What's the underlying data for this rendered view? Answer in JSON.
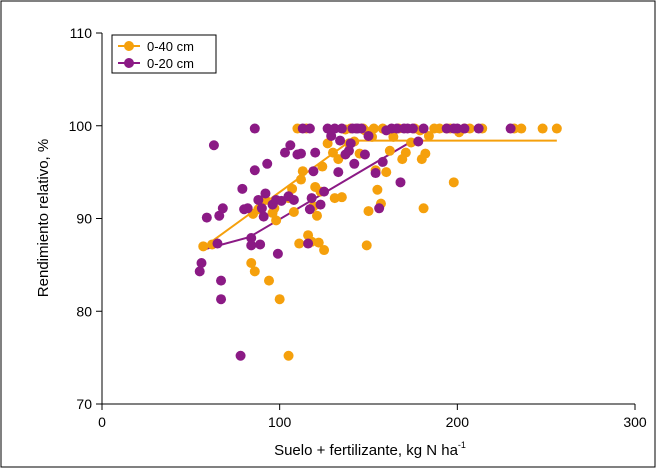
{
  "chart_data": {
    "type": "scatter",
    "title": "",
    "xlabel": "Suelo + fertilizante, kg N ha",
    "xlabel_superscript": "-1",
    "ylabel": "Rendimiento relativo, %",
    "xlim": [
      0,
      300
    ],
    "ylim": [
      70,
      110
    ],
    "x_ticks": [
      "0",
      "100",
      "200",
      "300"
    ],
    "y_ticks": [
      "70",
      "80",
      "90",
      "100",
      "110"
    ],
    "grid": false,
    "legend_position": "top-left",
    "series": [
      {
        "name": "0-40 cm",
        "color": "#F5A00C",
        "points": [
          [
            57,
            87
          ],
          [
            62,
            87.2
          ],
          [
            84,
            85.2
          ],
          [
            86,
            84.3
          ],
          [
            85,
            90.5
          ],
          [
            88,
            91
          ],
          [
            92,
            92
          ],
          [
            94,
            83.3
          ],
          [
            96,
            90.6
          ],
          [
            97,
            91.1
          ],
          [
            98,
            89.8
          ],
          [
            100,
            81.3
          ],
          [
            105,
            92.2
          ],
          [
            105,
            75.2
          ],
          [
            107,
            93.2
          ],
          [
            108,
            90.7
          ],
          [
            110,
            99.7
          ],
          [
            111,
            87.3
          ],
          [
            112,
            94.2
          ],
          [
            113,
            95.1
          ],
          [
            115,
            99.7
          ],
          [
            116,
            88.2
          ],
          [
            118,
            87.5
          ],
          [
            119,
            91.3
          ],
          [
            120,
            93.4
          ],
          [
            121,
            90.3
          ],
          [
            122,
            87.4
          ],
          [
            123,
            92.9
          ],
          [
            124,
            95.6
          ],
          [
            125,
            86.6
          ],
          [
            127,
            98.1
          ],
          [
            130,
            97.1
          ],
          [
            131,
            92.2
          ],
          [
            133,
            96.4
          ],
          [
            135,
            92.3
          ],
          [
            137,
            99.6
          ],
          [
            139,
            98.1
          ],
          [
            140,
            99.7
          ],
          [
            142,
            98.3
          ],
          [
            145,
            97.0
          ],
          [
            147,
            99.7
          ],
          [
            148,
            99.5
          ],
          [
            149,
            87.1
          ],
          [
            150,
            90.8
          ],
          [
            152,
            98.8
          ],
          [
            153,
            99.7
          ],
          [
            154,
            95.2
          ],
          [
            155,
            93.1
          ],
          [
            157,
            91.6
          ],
          [
            158,
            99.7
          ],
          [
            160,
            95.0
          ],
          [
            162,
            97.3
          ],
          [
            164,
            98.8
          ],
          [
            167,
            99.7
          ],
          [
            169,
            96.4
          ],
          [
            171,
            97.1
          ],
          [
            174,
            98.2
          ],
          [
            176,
            99.7
          ],
          [
            179,
            99.5
          ],
          [
            180,
            96.4
          ],
          [
            181,
            91.1
          ],
          [
            182,
            97.0
          ],
          [
            184,
            98.9
          ],
          [
            187,
            99.7
          ],
          [
            190,
            99.7
          ],
          [
            194,
            99.7
          ],
          [
            196,
            99.7
          ],
          [
            198,
            93.9
          ],
          [
            201,
            99.3
          ],
          [
            204,
            99.7
          ],
          [
            207,
            99.7
          ],
          [
            214,
            99.7
          ],
          [
            232,
            99.7
          ],
          [
            236,
            99.7
          ],
          [
            248,
            99.7
          ],
          [
            256,
            99.7
          ]
        ]
      },
      {
        "name": "0-20 cm",
        "color": "#8B1A85",
        "points": [
          [
            55,
            84.3
          ],
          [
            56,
            85.2
          ],
          [
            59,
            90.1
          ],
          [
            63,
            97.9
          ],
          [
            65,
            87.3
          ],
          [
            66,
            90.3
          ],
          [
            67,
            81.3
          ],
          [
            67,
            83.3
          ],
          [
            68,
            91.1
          ],
          [
            78,
            75.2
          ],
          [
            79,
            93.2
          ],
          [
            80,
            91.0
          ],
          [
            82,
            91.1
          ],
          [
            84,
            87.9
          ],
          [
            84,
            87.1
          ],
          [
            86,
            99.7
          ],
          [
            86,
            95.2
          ],
          [
            88,
            92.0
          ],
          [
            89,
            87.2
          ],
          [
            90,
            91.1
          ],
          [
            91,
            90.2
          ],
          [
            92,
            92.7
          ],
          [
            93,
            95.9
          ],
          [
            96,
            91.5
          ],
          [
            98,
            92.0
          ],
          [
            99,
            86.2
          ],
          [
            101,
            91.9
          ],
          [
            103,
            97.1
          ],
          [
            105,
            92.4
          ],
          [
            106,
            97.9
          ],
          [
            108,
            92.0
          ],
          [
            110,
            96.9
          ],
          [
            112,
            97.0
          ],
          [
            113,
            99.7
          ],
          [
            116,
            87.3
          ],
          [
            117,
            91.0
          ],
          [
            117,
            99.7
          ],
          [
            118,
            92.2
          ],
          [
            119,
            95.1
          ],
          [
            120,
            97.1
          ],
          [
            123,
            91.5
          ],
          [
            125,
            92.9
          ],
          [
            127,
            99.7
          ],
          [
            129,
            98.9
          ],
          [
            131,
            99.7
          ],
          [
            133,
            95.0
          ],
          [
            134,
            98.4
          ],
          [
            135,
            99.7
          ],
          [
            137,
            96.9
          ],
          [
            139,
            97.3
          ],
          [
            140,
            98.1
          ],
          [
            141,
            99.7
          ],
          [
            142,
            95.9
          ],
          [
            143,
            99.7
          ],
          [
            144,
            99.7
          ],
          [
            146,
            99.7
          ],
          [
            148,
            96.9
          ],
          [
            150,
            98.9
          ],
          [
            154,
            94.9
          ],
          [
            156,
            91.1
          ],
          [
            158,
            96.1
          ],
          [
            160,
            99.5
          ],
          [
            163,
            99.7
          ],
          [
            166,
            99.7
          ],
          [
            168,
            93.9
          ],
          [
            170,
            99.7
          ],
          [
            172,
            99.7
          ],
          [
            175,
            99.7
          ],
          [
            178,
            98.3
          ],
          [
            181,
            99.7
          ],
          [
            194,
            99.7
          ],
          [
            198,
            99.7
          ],
          [
            200,
            99.7
          ],
          [
            204,
            99.7
          ],
          [
            212,
            99.7
          ],
          [
            230,
            99.7
          ]
        ]
      }
    ],
    "fit_lines": [
      {
        "series": "0-40 cm",
        "color": "#F5A00C",
        "points": [
          [
            58,
            87.0
          ],
          [
            140,
            98.4
          ],
          [
            256,
            98.4
          ]
        ]
      },
      {
        "series": "0-20 cm",
        "color": "#8B1A85",
        "points": [
          [
            58,
            86.7
          ],
          [
            83,
            88.0
          ],
          [
            175,
            98.4
          ]
        ]
      }
    ]
  }
}
